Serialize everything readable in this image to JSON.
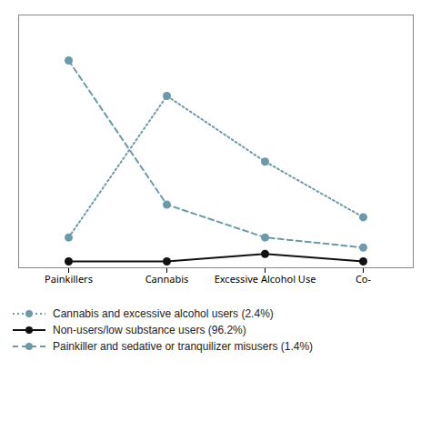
{
  "chart_data": {
    "type": "line",
    "categories": [
      "Painkillers",
      "Cannabis",
      "Excessive Alcohol Use",
      "Co-"
    ],
    "series": [
      {
        "name": "Cannabis and excessive alcohol users (2.4%)",
        "color": "#6d9aaa",
        "line_style": "dotted",
        "marker": "circle",
        "values": [
          0.12,
          0.68,
          0.42,
          0.2
        ]
      },
      {
        "name": "Non-users/low substance users (96.2%)",
        "color": "#111111",
        "line_style": "solid",
        "marker": "circle",
        "values": [
          0.025,
          0.025,
          0.055,
          0.025
        ]
      },
      {
        "name": "Painkiller and sedative or tranquilizer misusers (1.4%)",
        "color": "#6d9aaa",
        "line_style": "dashed",
        "marker": "circle",
        "values": [
          0.82,
          0.25,
          0.12,
          0.08
        ]
      }
    ],
    "ylim": [
      0.0,
      1.0
    ],
    "yticks": [],
    "grid": false,
    "tick_labels": "x",
    "legend": "bottom"
  }
}
